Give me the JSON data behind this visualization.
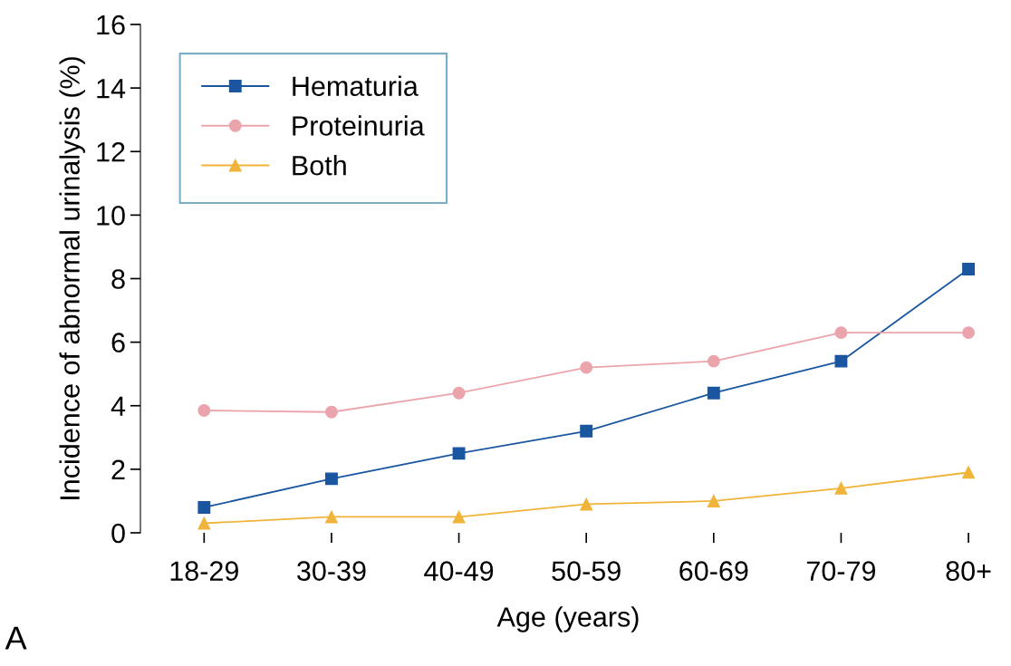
{
  "chart_data": {
    "type": "line",
    "xlabel": "Age (years)",
    "ylabel": "Incidence of abnormal urinalysis (%)",
    "categories": [
      "18-29",
      "30-39",
      "40-49",
      "50-59",
      "60-69",
      "70-79",
      "80+"
    ],
    "series": [
      {
        "name": "Hematuria",
        "color": "#1a56a0",
        "marker": "square",
        "values": [
          0.8,
          1.7,
          2.5,
          3.2,
          4.4,
          5.4,
          8.3
        ]
      },
      {
        "name": "Proteinuria",
        "color": "#eba4ac",
        "marker": "circle",
        "values": [
          3.85,
          3.8,
          4.4,
          5.2,
          5.4,
          6.3,
          6.3
        ]
      },
      {
        "name": "Both",
        "color": "#f0b43a",
        "marker": "triangle",
        "values": [
          0.3,
          0.5,
          0.5,
          0.9,
          1.0,
          1.4,
          1.9
        ]
      }
    ],
    "ylim": [
      0,
      16
    ],
    "yticks": [
      0,
      2,
      4,
      6,
      8,
      10,
      12,
      14,
      16
    ],
    "grid": false,
    "legend": "top left",
    "line_style": "solid",
    "annotations": [
      "A"
    ]
  }
}
